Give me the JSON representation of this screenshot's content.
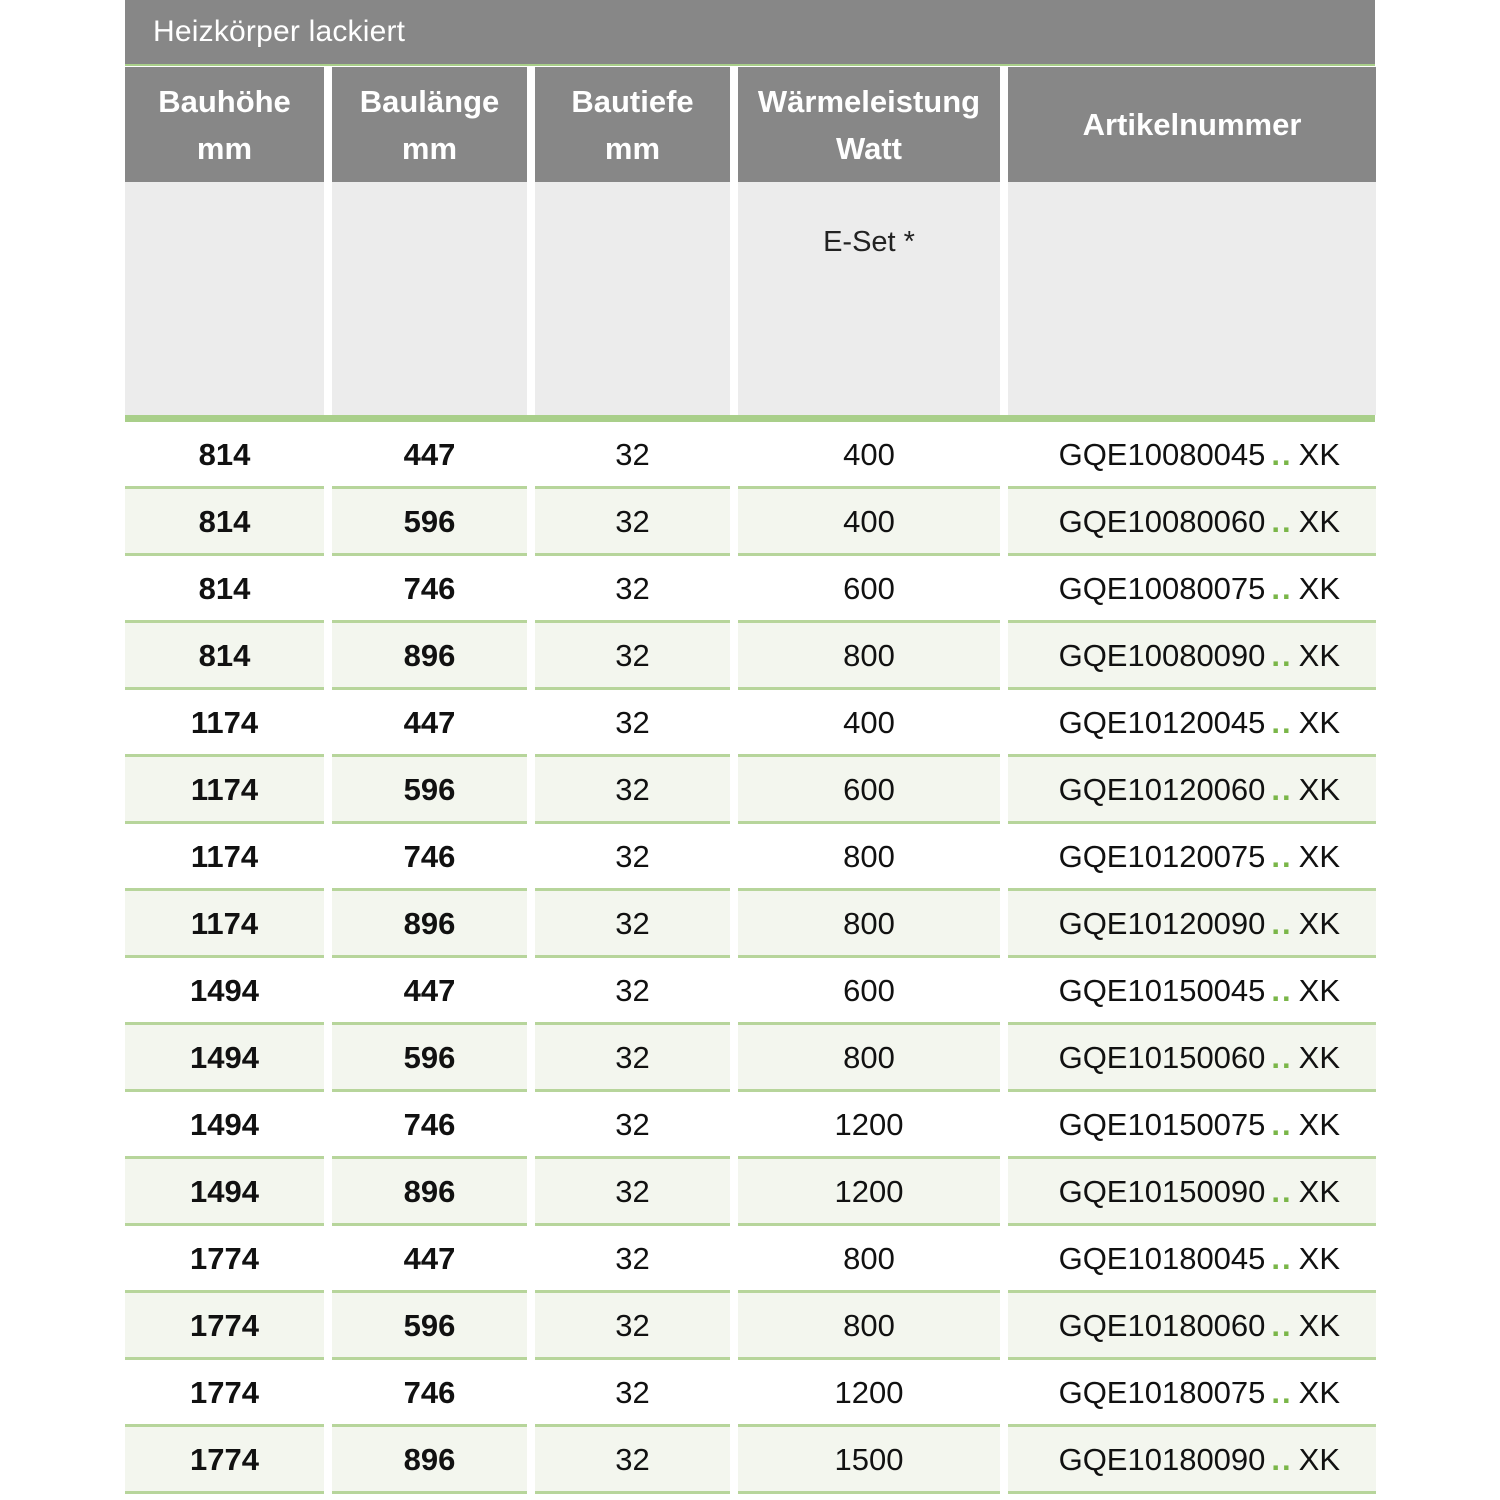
{
  "title": "Heizkörper lackiert",
  "headers": [
    {
      "line1": "Bauhöhe",
      "line2": "mm"
    },
    {
      "line1": "Baulänge",
      "line2": "mm"
    },
    {
      "line1": "Bautiefe",
      "line2": "mm"
    },
    {
      "line1": "Wärmeleistung",
      "line2": "Watt"
    },
    {
      "line1": "Artikelnummer",
      "line2": ""
    }
  ],
  "subheader": {
    "waerme": "E-Set *"
  },
  "dots": "..",
  "colors": {
    "header_bg": "#878787",
    "accent_green": "#a9cf8a",
    "alt_row": "#f3f6ee",
    "dots": "#7ab648"
  },
  "rows": [
    {
      "hoehe": "814",
      "laenge": "447",
      "tiefe": "32",
      "watt": "400",
      "artikel": "GQE10080045",
      "suffix": "XK"
    },
    {
      "hoehe": "814",
      "laenge": "596",
      "tiefe": "32",
      "watt": "400",
      "artikel": "GQE10080060",
      "suffix": "XK"
    },
    {
      "hoehe": "814",
      "laenge": "746",
      "tiefe": "32",
      "watt": "600",
      "artikel": "GQE10080075",
      "suffix": "XK"
    },
    {
      "hoehe": "814",
      "laenge": "896",
      "tiefe": "32",
      "watt": "800",
      "artikel": "GQE10080090",
      "suffix": "XK"
    },
    {
      "hoehe": "1174",
      "laenge": "447",
      "tiefe": "32",
      "watt": "400",
      "artikel": "GQE10120045",
      "suffix": "XK"
    },
    {
      "hoehe": "1174",
      "laenge": "596",
      "tiefe": "32",
      "watt": "600",
      "artikel": "GQE10120060",
      "suffix": "XK"
    },
    {
      "hoehe": "1174",
      "laenge": "746",
      "tiefe": "32",
      "watt": "800",
      "artikel": "GQE10120075",
      "suffix": "XK"
    },
    {
      "hoehe": "1174",
      "laenge": "896",
      "tiefe": "32",
      "watt": "800",
      "artikel": "GQE10120090",
      "suffix": "XK"
    },
    {
      "hoehe": "1494",
      "laenge": "447",
      "tiefe": "32",
      "watt": "600",
      "artikel": "GQE10150045",
      "suffix": "XK"
    },
    {
      "hoehe": "1494",
      "laenge": "596",
      "tiefe": "32",
      "watt": "800",
      "artikel": "GQE10150060",
      "suffix": "XK"
    },
    {
      "hoehe": "1494",
      "laenge": "746",
      "tiefe": "32",
      "watt": "1200",
      "artikel": "GQE10150075",
      "suffix": "XK"
    },
    {
      "hoehe": "1494",
      "laenge": "896",
      "tiefe": "32",
      "watt": "1200",
      "artikel": "GQE10150090",
      "suffix": "XK"
    },
    {
      "hoehe": "1774",
      "laenge": "447",
      "tiefe": "32",
      "watt": "800",
      "artikel": "GQE10180045",
      "suffix": "XK"
    },
    {
      "hoehe": "1774",
      "laenge": "596",
      "tiefe": "32",
      "watt": "800",
      "artikel": "GQE10180060",
      "suffix": "XK"
    },
    {
      "hoehe": "1774",
      "laenge": "746",
      "tiefe": "32",
      "watt": "1200",
      "artikel": "GQE10180075",
      "suffix": "XK"
    },
    {
      "hoehe": "1774",
      "laenge": "896",
      "tiefe": "32",
      "watt": "1500",
      "artikel": "GQE10180090",
      "suffix": "XK"
    }
  ]
}
